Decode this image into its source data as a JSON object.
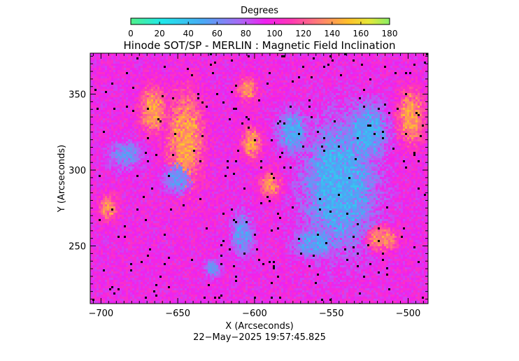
{
  "chart_data": {
    "type": "heatmap",
    "title": "Hinode SOT/SP - MERLIN : Magnetic Field Inclination",
    "xlabel": "X (Arcseconds)",
    "ylabel": "Y (Arcseconds)",
    "xlim": [
      -707,
      -487
    ],
    "ylim": [
      212,
      377
    ],
    "xticks": [
      -700,
      -650,
      -600,
      -550,
      -500
    ],
    "xtick_labels": [
      "−700",
      "−650",
      "−600",
      "−550",
      "−500"
    ],
    "yticks": [
      250,
      300,
      350
    ],
    "ytick_labels": [
      "250",
      "300",
      "350"
    ],
    "colorbar": {
      "title": "Degrees",
      "range": [
        0,
        180
      ],
      "ticks": [
        0,
        20,
        40,
        60,
        80,
        100,
        120,
        140,
        160,
        180
      ],
      "tick_labels": [
        "0",
        "20",
        "40",
        "60",
        "80",
        "100",
        "120",
        "140",
        "160",
        "180"
      ]
    },
    "timestamp": "22−May−2025 19:57:45.825",
    "baseline_deg": 95,
    "regions": [
      {
        "kind": "negative",
        "deg": 45,
        "x": -545,
        "y": 290,
        "rx": 24,
        "ry": 42
      },
      {
        "kind": "negative",
        "deg": 48,
        "x": -527,
        "y": 325,
        "rx": 14,
        "ry": 20
      },
      {
        "kind": "negative",
        "deg": 50,
        "x": -575,
        "y": 325,
        "rx": 10,
        "ry": 14
      },
      {
        "kind": "negative",
        "deg": 50,
        "x": -560,
        "y": 252,
        "rx": 14,
        "ry": 10
      },
      {
        "kind": "negative",
        "deg": 55,
        "x": -608,
        "y": 258,
        "rx": 7,
        "ry": 14
      },
      {
        "kind": "negative",
        "deg": 58,
        "x": -627,
        "y": 235,
        "rx": 5,
        "ry": 6
      },
      {
        "kind": "negative",
        "deg": 60,
        "x": -650,
        "y": 295,
        "rx": 9,
        "ry": 11
      },
      {
        "kind": "negative",
        "deg": 60,
        "x": -684,
        "y": 310,
        "rx": 11,
        "ry": 9
      },
      {
        "kind": "positive",
        "deg": 142,
        "x": -645,
        "y": 320,
        "rx": 12,
        "ry": 32
      },
      {
        "kind": "positive",
        "deg": 140,
        "x": -666,
        "y": 340,
        "rx": 9,
        "ry": 16
      },
      {
        "kind": "positive",
        "deg": 142,
        "x": -602,
        "y": 318,
        "rx": 6,
        "ry": 11
      },
      {
        "kind": "positive",
        "deg": 138,
        "x": -590,
        "y": 290,
        "rx": 7,
        "ry": 9
      },
      {
        "kind": "positive",
        "deg": 140,
        "x": -498,
        "y": 335,
        "rx": 9,
        "ry": 18
      },
      {
        "kind": "positive",
        "deg": 138,
        "x": -517,
        "y": 255,
        "rx": 10,
        "ry": 8
      },
      {
        "kind": "positive",
        "deg": 135,
        "x": -695,
        "y": 275,
        "rx": 6,
        "ry": 9
      },
      {
        "kind": "positive",
        "deg": 135,
        "x": -605,
        "y": 353,
        "rx": 7,
        "ry": 8
      }
    ]
  }
}
